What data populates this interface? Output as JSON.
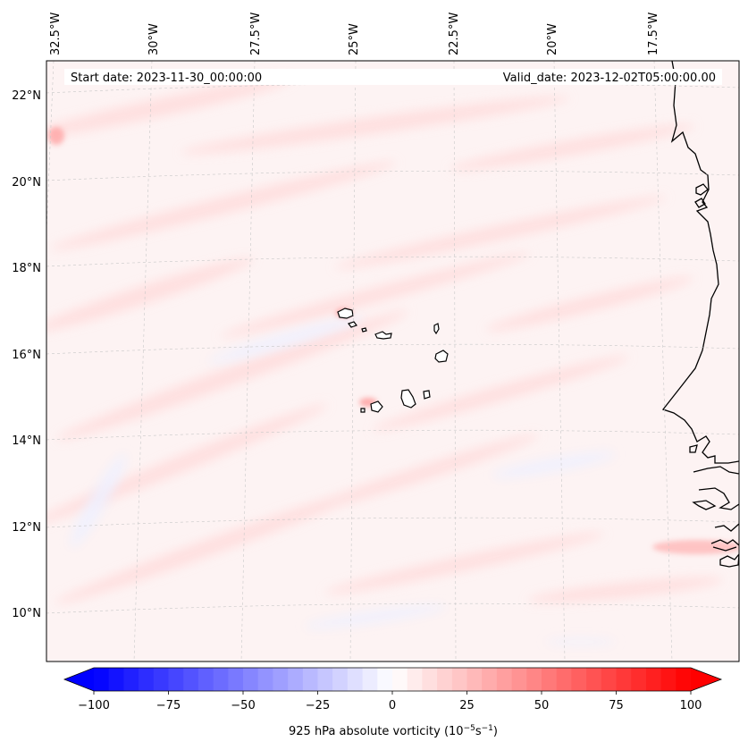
{
  "map": {
    "longitude_labels": [
      "32.5°W",
      "30°W",
      "27.5°W",
      "25°W",
      "22.5°W",
      "20°W",
      "17.5°W"
    ],
    "latitude_labels": [
      "22°N",
      "20°N",
      "18°N",
      "16°N",
      "14°N",
      "12°N",
      "10°N"
    ],
    "start_date": "Start date: 2023-11-30_00:00:00",
    "valid_date": "Valid_date: 2023-12-02T05:00:00.00",
    "field_colors": {
      "background": "#fdf3f3",
      "positive": "#ffdada",
      "negative": "#eef0ff",
      "coast": "#000000"
    }
  },
  "colorbar": {
    "ticks": [
      "−100",
      "−75",
      "−50",
      "−25",
      "0",
      "25",
      "50",
      "75",
      "100"
    ],
    "label_main": "925 hPa absolute vorticity (10",
    "label_exp1": "−5",
    "label_mid": "s",
    "label_exp2": "−1",
    "label_end": ")",
    "min": -100,
    "max": 100,
    "colors": {
      "low": "#0000ff",
      "mid": "#ffffff",
      "high": "#ff0000"
    }
  }
}
